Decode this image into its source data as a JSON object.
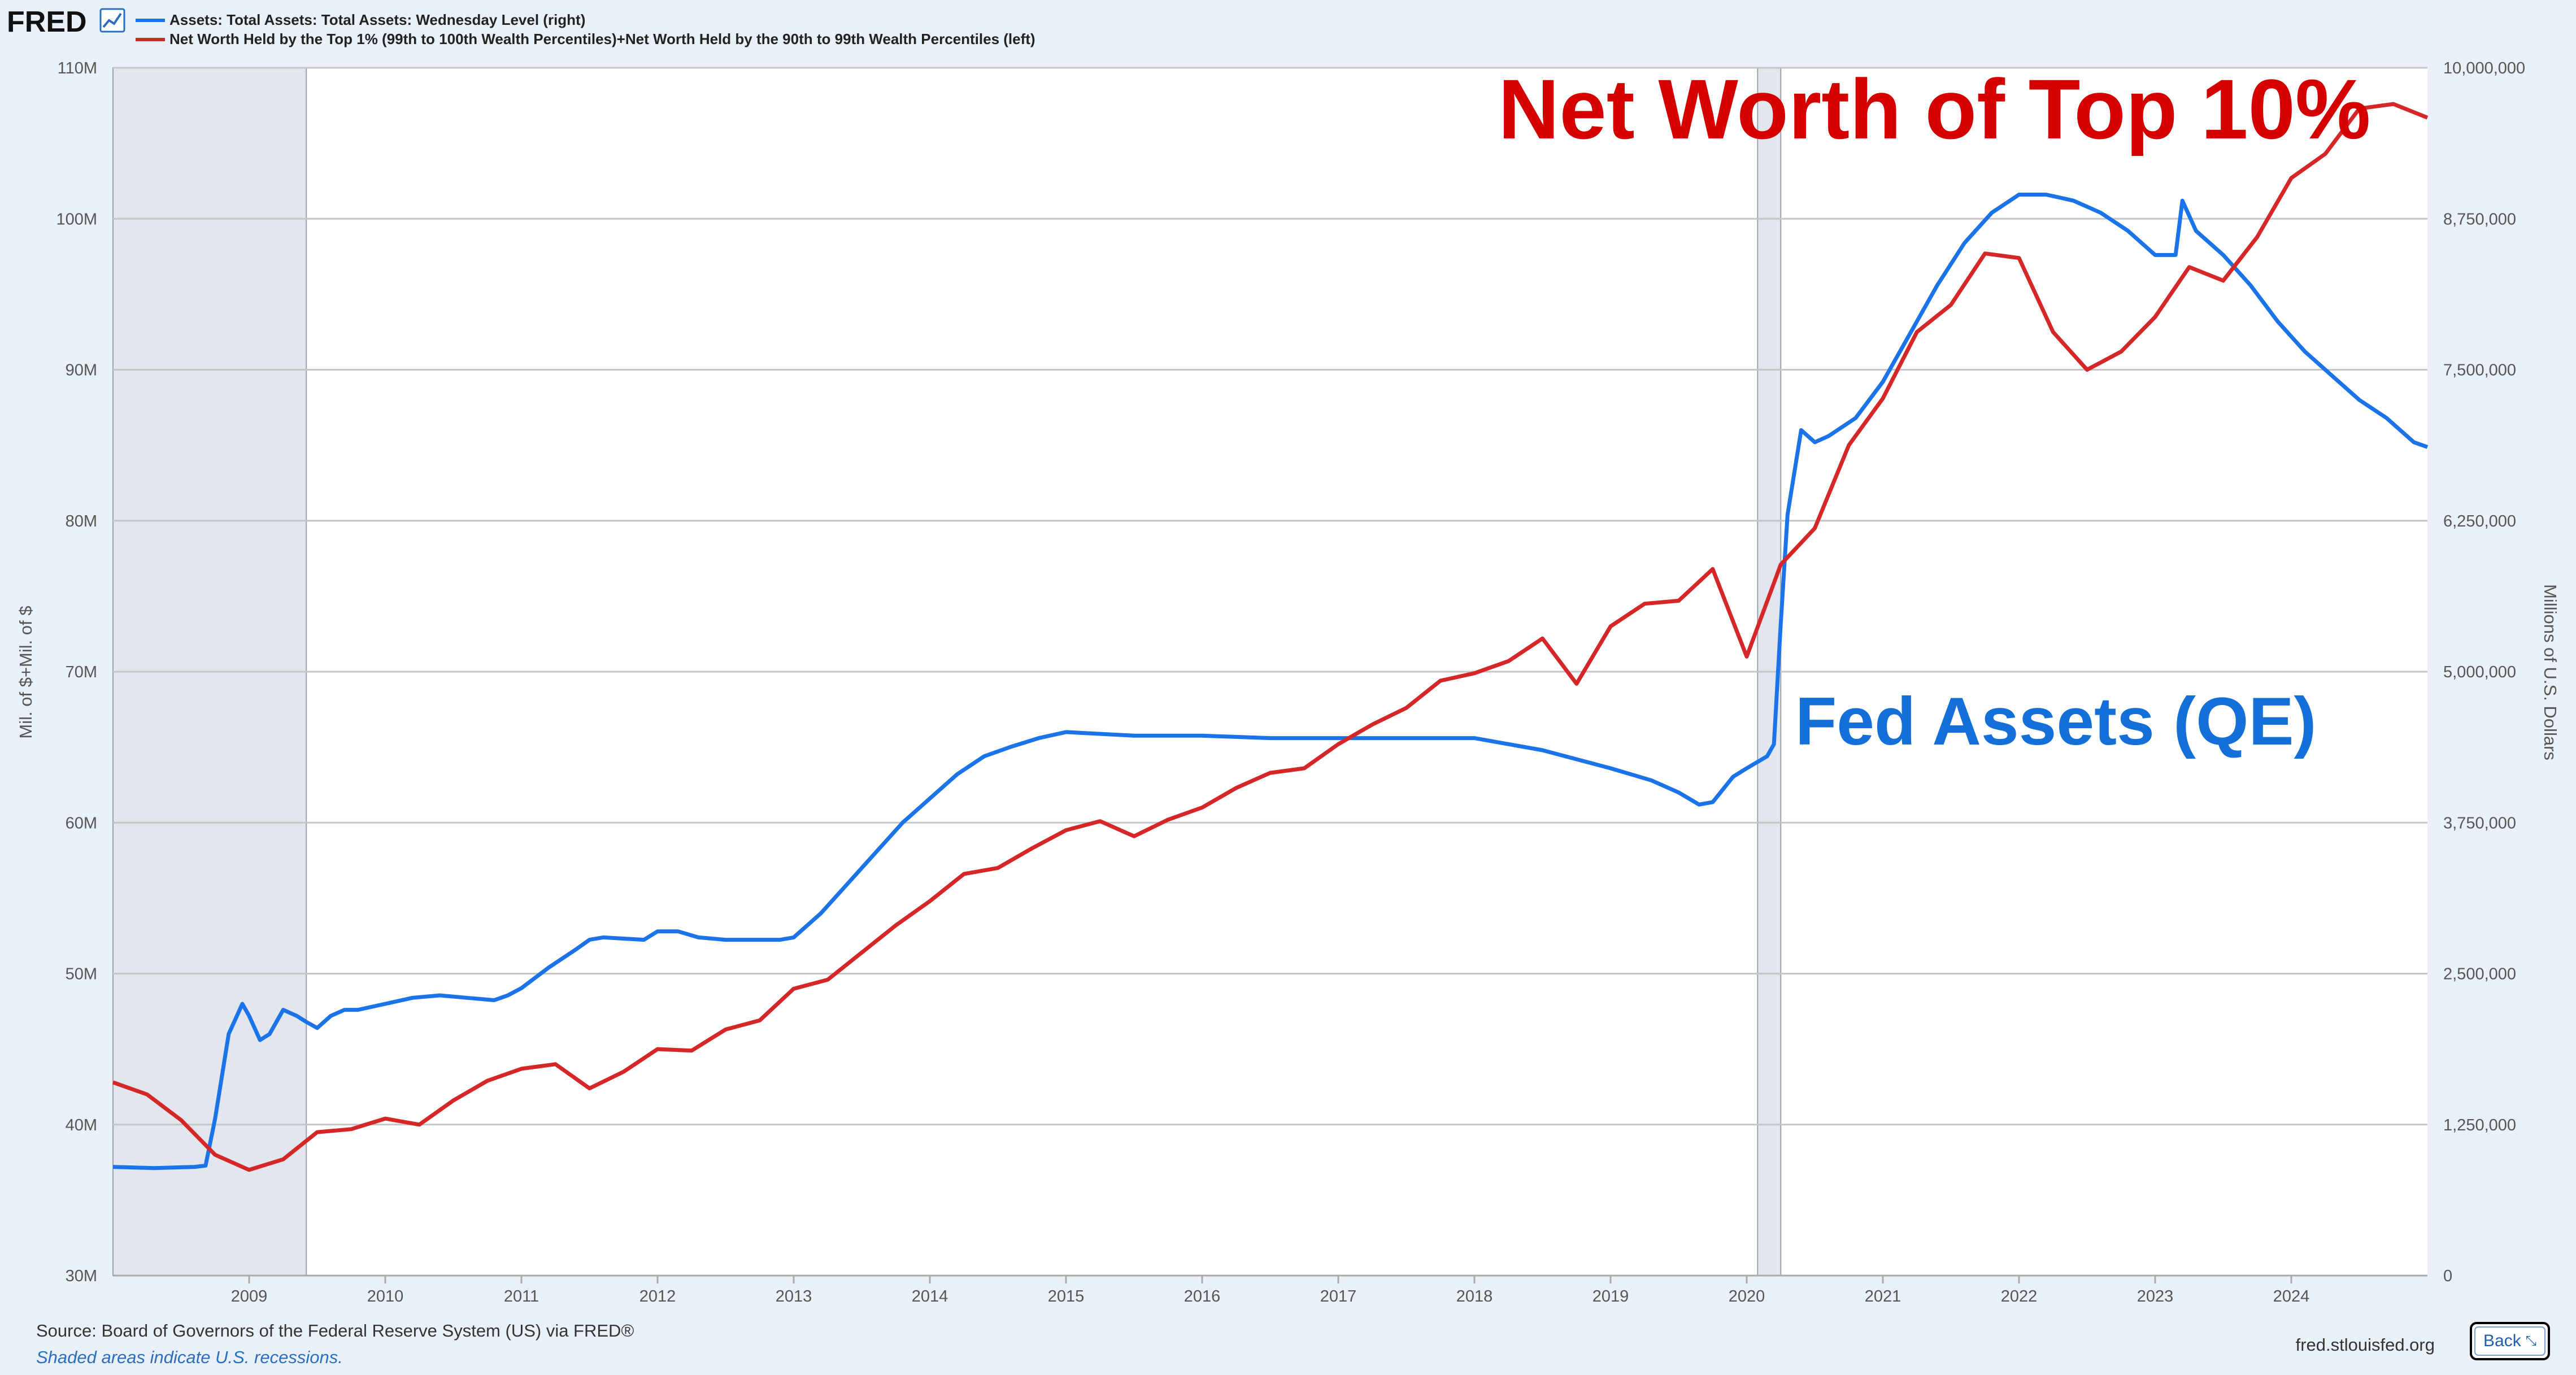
{
  "header": {
    "logo": "FRED",
    "legend": [
      {
        "label": "Assets: Total Assets: Total Assets: Wednesday Level (right)",
        "color": "#1a73e8"
      },
      {
        "label": "Net Worth Held by the Top 1% (99th to 100th Wealth Percentiles)+Net Worth Held by the 90th to 99th Wealth Percentiles (left)",
        "color": "#d62728"
      }
    ]
  },
  "annotations": {
    "red": "Net Worth of Top 10%",
    "blue": "Fed Assets (QE)"
  },
  "footer": {
    "source": "Source: Board of Governors of the Federal Reserve System (US) via FRED®",
    "note": "Shaded areas indicate U.S. recessions.",
    "site": "fred.stlouisfed.org",
    "back": "Back"
  },
  "chart_data": {
    "type": "line",
    "xlim": [
      2008.0,
      2025.0
    ],
    "x_ticks": [
      2009,
      2010,
      2011,
      2012,
      2013,
      2014,
      2015,
      2016,
      2017,
      2018,
      2019,
      2020,
      2021,
      2022,
      2023,
      2024
    ],
    "x_tick_labels": [
      "2009",
      "2010",
      "2011",
      "2012",
      "2013",
      "2014",
      "2015",
      "2016",
      "2017",
      "2018",
      "2019",
      "2020",
      "2021",
      "2022",
      "2023",
      "2024"
    ],
    "recessions": [
      [
        2008.0,
        2009.42
      ],
      [
        2020.08,
        2020.25
      ]
    ],
    "left_axis": {
      "title": "Mil. of $+Mil. of $",
      "ylim": [
        30000000,
        110000000
      ],
      "ticks": [
        30000000,
        40000000,
        50000000,
        60000000,
        70000000,
        80000000,
        90000000,
        100000000,
        110000000
      ],
      "tick_labels": [
        "30M",
        "40M",
        "50M",
        "60M",
        "70M",
        "80M",
        "90M",
        "100M",
        "110M"
      ]
    },
    "right_axis": {
      "title": "Millions of U.S. Dollars",
      "ylim": [
        0,
        10000000
      ],
      "ticks": [
        0,
        1250000,
        2500000,
        3750000,
        5000000,
        6250000,
        7500000,
        8750000,
        10000000
      ],
      "tick_labels": [
        "0",
        "1,250,000",
        "2,500,000",
        "3,750,000",
        "5,000,000",
        "6,250,000",
        "7,500,000",
        "8,750,000",
        "10,000,000"
      ]
    },
    "grid": true,
    "legend_position": "top-left",
    "series": [
      {
        "name": "Assets: Total Assets: Total Assets: Wednesday Level (right)",
        "axis": "right",
        "color": "#1a73e8",
        "x": [
          2008.0,
          2008.3,
          2008.6,
          2008.68,
          2008.75,
          2008.85,
          2008.95,
          2009.0,
          2009.08,
          2009.15,
          2009.25,
          2009.35,
          2009.42,
          2009.5,
          2009.6,
          2009.7,
          2009.8,
          2010.0,
          2010.2,
          2010.4,
          2010.6,
          2010.8,
          2010.9,
          2011.0,
          2011.2,
          2011.4,
          2011.5,
          2011.6,
          2011.9,
          2012.0,
          2012.15,
          2012.3,
          2012.5,
          2012.7,
          2012.9,
          2013.0,
          2013.2,
          2013.4,
          2013.6,
          2013.8,
          2014.0,
          2014.2,
          2014.4,
          2014.6,
          2014.8,
          2015.0,
          2015.5,
          2016.0,
          2016.5,
          2017.0,
          2017.5,
          2018.0,
          2018.5,
          2019.0,
          2019.3,
          2019.5,
          2019.65,
          2019.75,
          2019.9,
          2020.0,
          2020.15,
          2020.2,
          2020.25,
          2020.3,
          2020.4,
          2020.5,
          2020.6,
          2020.8,
          2021.0,
          2021.2,
          2021.4,
          2021.6,
          2021.8,
          2022.0,
          2022.2,
          2022.4,
          2022.6,
          2022.8,
          2023.0,
          2023.15,
          2023.2,
          2023.3,
          2023.5,
          2023.7,
          2023.9,
          2024.1,
          2024.3,
          2024.5,
          2024.7,
          2024.9,
          2025.0
        ],
        "values": [
          900000,
          890000,
          900000,
          910000,
          1300000,
          2000000,
          2250000,
          2150000,
          1950000,
          2000000,
          2200000,
          2150000,
          2100000,
          2050000,
          2150000,
          2200000,
          2200000,
          2250000,
          2300000,
          2320000,
          2300000,
          2280000,
          2320000,
          2380000,
          2550000,
          2700000,
          2780000,
          2800000,
          2780000,
          2850000,
          2850000,
          2800000,
          2780000,
          2780000,
          2780000,
          2800000,
          3000000,
          3250000,
          3500000,
          3750000,
          3950000,
          4150000,
          4300000,
          4380000,
          4450000,
          4500000,
          4470000,
          4470000,
          4450000,
          4450000,
          4450000,
          4450000,
          4350000,
          4200000,
          4100000,
          4000000,
          3900000,
          3920000,
          4130000,
          4200000,
          4300000,
          4400000,
          5400000,
          6300000,
          7000000,
          6900000,
          6950000,
          7100000,
          7400000,
          7800000,
          8200000,
          8550000,
          8800000,
          8950000,
          8950000,
          8900000,
          8800000,
          8650000,
          8450000,
          8450000,
          8900000,
          8650000,
          8450000,
          8200000,
          7900000,
          7650000,
          7450000,
          7250000,
          7100000,
          6900000,
          6860000
        ]
      },
      {
        "name": "Net Worth Held by the Top 1% (99th to 100th Wealth Percentiles)+Net Worth Held by the 90th to 99th Wealth Percentiles (left)",
        "axis": "left",
        "color": "#d62728",
        "x": [
          2008.0,
          2008.25,
          2008.5,
          2008.75,
          2009.0,
          2009.25,
          2009.5,
          2009.75,
          2010.0,
          2010.25,
          2010.5,
          2010.75,
          2011.0,
          2011.25,
          2011.5,
          2011.75,
          2012.0,
          2012.25,
          2012.5,
          2012.75,
          2013.0,
          2013.25,
          2013.5,
          2013.75,
          2014.0,
          2014.25,
          2014.5,
          2014.75,
          2015.0,
          2015.25,
          2015.5,
          2015.75,
          2016.0,
          2016.25,
          2016.5,
          2016.75,
          2017.0,
          2017.25,
          2017.5,
          2017.75,
          2018.0,
          2018.25,
          2018.5,
          2018.75,
          2019.0,
          2019.25,
          2019.5,
          2019.75,
          2020.0,
          2020.25,
          2020.5,
          2020.75,
          2021.0,
          2021.25,
          2021.5,
          2021.75,
          2022.0,
          2022.25,
          2022.5,
          2022.75,
          2023.0,
          2023.25,
          2023.5,
          2023.75,
          2024.0,
          2024.25,
          2024.5,
          2024.75,
          2025.0
        ],
        "values": [
          42800000,
          42000000,
          40300000,
          38000000,
          37000000,
          37700000,
          39500000,
          39700000,
          40400000,
          40000000,
          41600000,
          42900000,
          43700000,
          44000000,
          42400000,
          43500000,
          45000000,
          44900000,
          46300000,
          46900000,
          49000000,
          49600000,
          51400000,
          53200000,
          54800000,
          56600000,
          57000000,
          58300000,
          59500000,
          60100000,
          59100000,
          60200000,
          61000000,
          62300000,
          63300000,
          63600000,
          65200000,
          66500000,
          67600000,
          69400000,
          69900000,
          70700000,
          72200000,
          69200000,
          73000000,
          74500000,
          74700000,
          76800000,
          71000000,
          77100000,
          79500000,
          85000000,
          88100000,
          92500000,
          94300000,
          97700000,
          97400000,
          92500000,
          90000000,
          91200000,
          93500000,
          96800000,
          95900000,
          98800000,
          102700000,
          104300000,
          107300000,
          107600000,
          106700000
        ]
      }
    ]
  }
}
